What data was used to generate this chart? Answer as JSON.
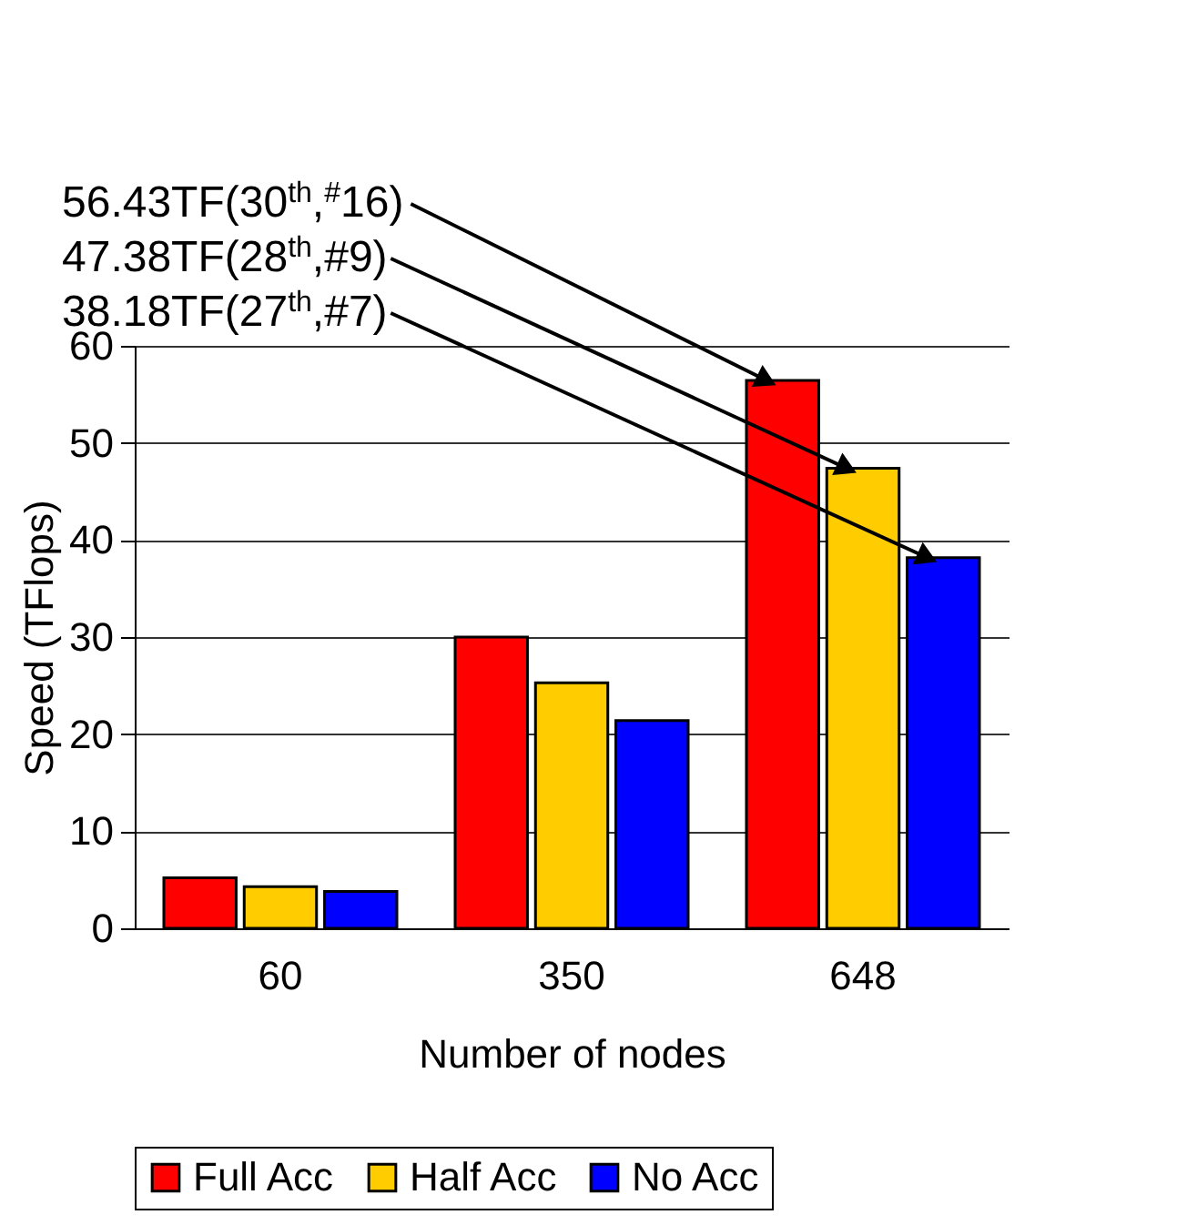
{
  "chart_data": {
    "type": "bar",
    "xlabel": "Number of nodes",
    "ylabel": "Speed (TFlops)",
    "categories": [
      "60",
      "350",
      "648"
    ],
    "series": [
      {
        "name": "Full Acc",
        "color": "#ff0000",
        "values": [
          5.2,
          30.0,
          56.43
        ]
      },
      {
        "name": "Half Acc",
        "color": "#ffcc00",
        "values": [
          4.3,
          25.3,
          47.38
        ]
      },
      {
        "name": "No Acc",
        "color": "#0000ff",
        "values": [
          3.8,
          21.4,
          38.18
        ]
      }
    ],
    "ylim": [
      0,
      60
    ],
    "yticks": [
      0,
      10,
      20,
      30,
      40,
      50,
      60
    ],
    "grid": "y",
    "legend": "bottom",
    "annotations": [
      "56.43TF(30$^{th}$,$^{#}$16)",
      "47.38TF(28$^{th}$,#9)",
      "38.18TF(27$^{th}$,#7)"
    ]
  }
}
